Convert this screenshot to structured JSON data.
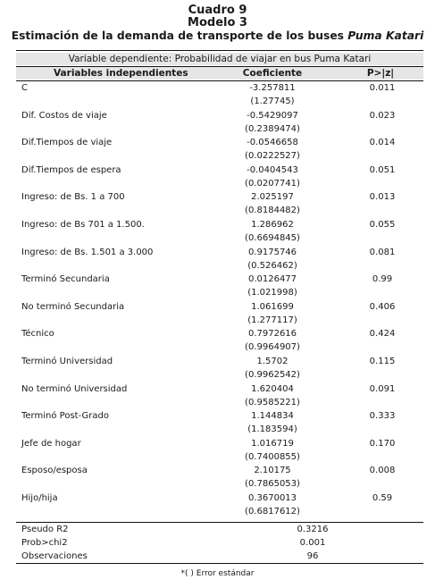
{
  "title": {
    "line1": "Cuadro 9",
    "line2": "Modelo 3",
    "line3_prefix": "Estimación de la demanda de transporte de los buses ",
    "line3_italic": "Puma Katari"
  },
  "dependent_variable": "Variable dependiente: Probabilidad de viajar en bus Puma Katari",
  "columns": {
    "variables": "Variables independientes",
    "coef": "Coeficiente",
    "p": "P>|z|"
  },
  "rows": [
    {
      "label": "C",
      "coef": "-3.257811",
      "se": "(1.27745)",
      "p": "0.011"
    },
    {
      "label": "Dif. Costos de viaje",
      "coef": "-0.5429097",
      "se": "(0.2389474)",
      "p": "0.023"
    },
    {
      "label": "Dif.Tiempos de viaje",
      "coef": "-0.0546658",
      "se": "(0.0222527)",
      "p": "0.014"
    },
    {
      "label": "Dif.Tiempos de espera",
      "coef": "-0.0404543",
      "se": "(0.0207741)",
      "p": "0.051"
    },
    {
      "label": "Ingreso: de Bs. 1 a 700",
      "coef": "2.025197",
      "se": "(0.8184482)",
      "p": "0.013"
    },
    {
      "label": "Ingreso: de Bs  701 a 1.500.",
      "coef": "1.286962",
      "se": "(0.6694845)",
      "p": "0.055"
    },
    {
      "label": "Ingreso: de Bs. 1.501 a 3.000",
      "coef": "0.9175746",
      "se": "(0.526462)",
      "p": "0.081"
    },
    {
      "label": "Terminó Secundaria",
      "coef": "0.0126477",
      "se": "(1.021998)",
      "p": "0.99"
    },
    {
      "label": "No terminó Secundaria",
      "coef": "1.061699",
      "se": "(1.277117)",
      "p": "0.406"
    },
    {
      "label": "Técnico",
      "coef": "0.7972616",
      "se": "(0.9964907)",
      "p": "0.424"
    },
    {
      "label": "Terminó Universidad",
      "coef": "1.5702",
      "se": "(0.9962542)",
      "p": "0.115"
    },
    {
      "label": "No terminó Universidad",
      "coef": "1.620404",
      "se": "(0.9585221)",
      "p": "0.091"
    },
    {
      "label": "Terminó Post-Grado",
      "coef": "1.144834",
      "se": "(1.183594)",
      "p": "0.333"
    },
    {
      "label": "Jefe de hogar",
      "coef": "1.016719",
      "se": "(0.7400855)",
      "p": "0.170"
    },
    {
      "label": "Esposo/esposa",
      "coef": "2.10175",
      "se": "(0.7865053)",
      "p": "0.008"
    },
    {
      "label": "Hijo/hija",
      "coef": "0.3670013",
      "se": "(0.6817612)",
      "p": "0.59"
    }
  ],
  "stats": [
    {
      "label": "Pseudo R2",
      "value": "0.3216"
    },
    {
      "label": "Prob>chi2",
      "value": "0.001"
    },
    {
      "label": "Observaciones",
      "value": "96"
    }
  ],
  "footnote": "*( ) Error estándar"
}
